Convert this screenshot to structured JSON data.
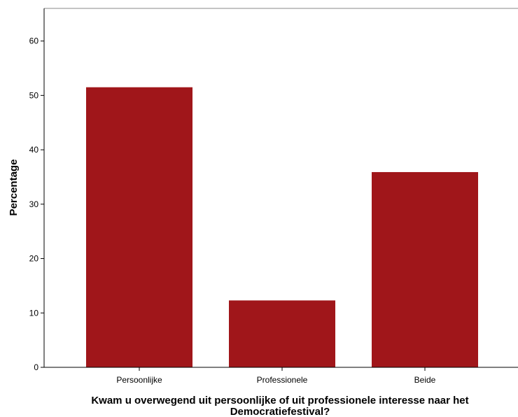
{
  "chart_data": {
    "type": "bar",
    "title": "",
    "categories": [
      "Persoonlijke",
      "Professionele",
      "Beide"
    ],
    "values": [
      51.5,
      12.3,
      35.9
    ],
    "xlabel_lines": [
      "Kwam u overwegend uit persoonlijke of uit professionele interesse naar het",
      "Democratiefestival?"
    ],
    "ylabel": "Percentage",
    "ylim": [
      0,
      66
    ],
    "yticks": [
      0,
      10,
      20,
      30,
      40,
      50,
      60
    ],
    "grid": false,
    "legend": "none",
    "colors": {
      "bar": "#a0161a",
      "axis": "#000000",
      "frame": "#888888"
    }
  }
}
